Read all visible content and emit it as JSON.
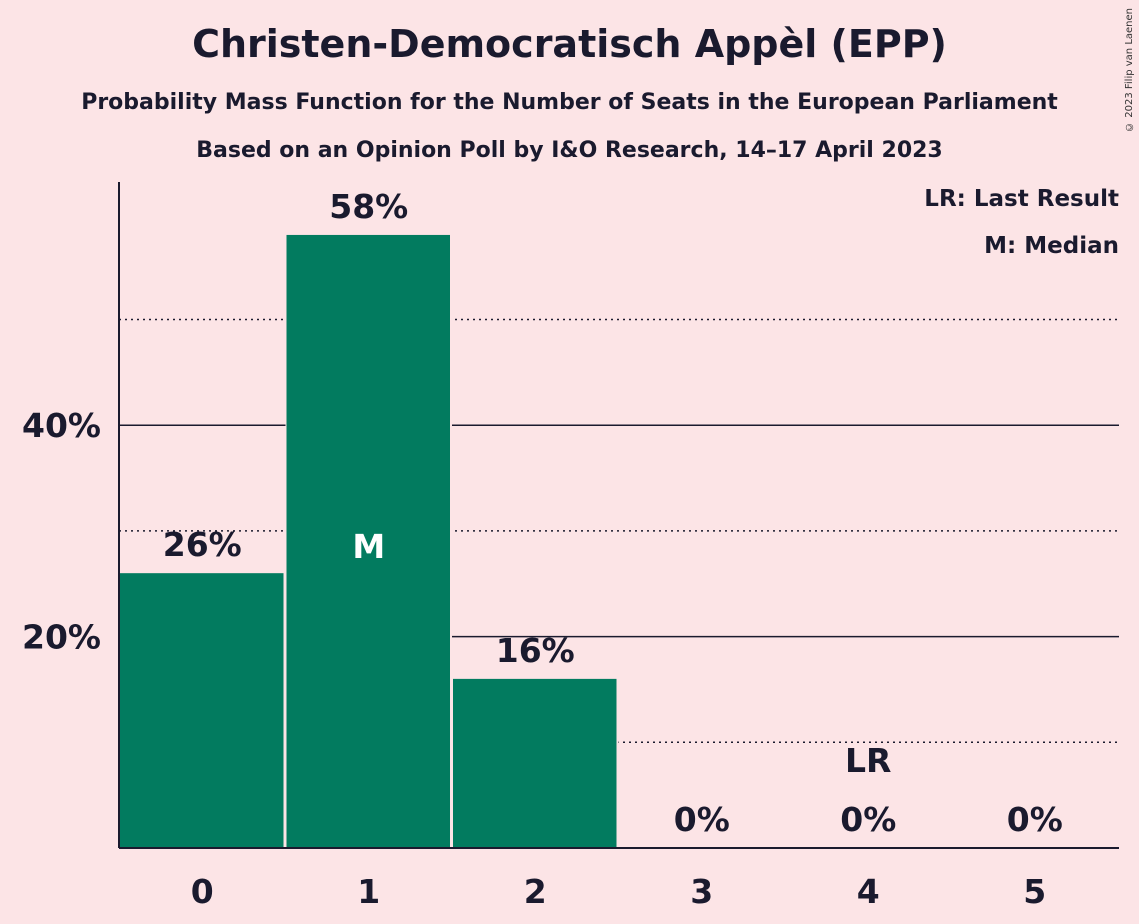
{
  "title": "Christen-Democratisch Appèl (EPP)",
  "subtitle": "Probability Mass Function for the Number of Seats in the European Parliament",
  "subtitle2": "Based on an Opinion Poll by I&O Research, 14–17 April 2023",
  "copyright": "© 2023 Filip van Laenen",
  "legend": {
    "last_result": "LR: Last Result",
    "median": "M: Median"
  },
  "colors": {
    "bar": "#027b5f",
    "background": "#fce4e6",
    "text": "#1a1a2e"
  },
  "chart_data": {
    "type": "bar",
    "categories": [
      "0",
      "1",
      "2",
      "3",
      "4",
      "5"
    ],
    "values": [
      26,
      58,
      16,
      0,
      0,
      0
    ],
    "value_labels": [
      "26%",
      "58%",
      "16%",
      "0%",
      "0%",
      "0%"
    ],
    "ylim": [
      0,
      63
    ],
    "yticks": [
      {
        "value": 20,
        "label": "20%"
      },
      {
        "value": 40,
        "label": "40%"
      }
    ],
    "dotted_gridlines": [
      10,
      30,
      50
    ],
    "median_category": "1",
    "median_label": "M",
    "last_result_category": "4",
    "last_result_label": "LR"
  }
}
